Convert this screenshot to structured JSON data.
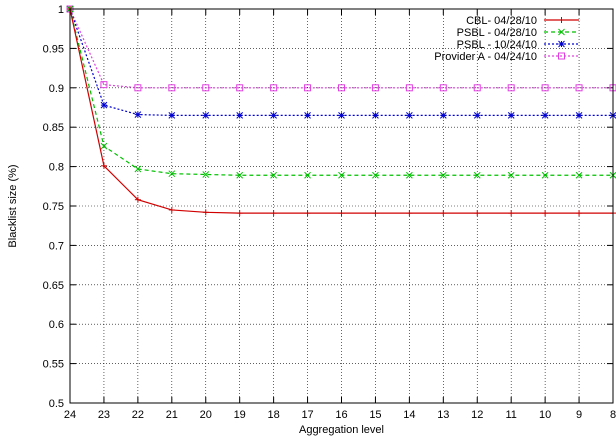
{
  "chart_data": {
    "type": "line",
    "xlabel": "Aggregation level",
    "ylabel": "Blacklist size (%)",
    "x": [
      24,
      23,
      22,
      21,
      20,
      19,
      18,
      17,
      16,
      15,
      14,
      13,
      12,
      11,
      10,
      9,
      8
    ],
    "x_reversed": true,
    "ylim": [
      0.5,
      1.0
    ],
    "yticks": [
      "0.5",
      "0.55",
      "0.6",
      "0.65",
      "0.7",
      "0.75",
      "0.8",
      "0.85",
      "0.9",
      "0.95",
      "1"
    ],
    "grid": true,
    "legend_position": "top-right",
    "series": [
      {
        "name": "CBL- 04/28/10",
        "color": "#d00000",
        "marker": "plus",
        "line": "solid",
        "values": [
          1.0,
          0.801,
          0.758,
          0.745,
          0.742,
          0.741,
          0.741,
          0.741,
          0.741,
          0.741,
          0.741,
          0.741,
          0.741,
          0.741,
          0.741,
          0.741,
          0.741
        ]
      },
      {
        "name": "PSBL - 04/28/10",
        "color": "#00c000",
        "marker": "cross",
        "line": "dashed",
        "values": [
          1.0,
          0.826,
          0.797,
          0.791,
          0.79,
          0.789,
          0.789,
          0.789,
          0.789,
          0.789,
          0.789,
          0.789,
          0.789,
          0.789,
          0.789,
          0.789,
          0.789
        ]
      },
      {
        "name": "PSBL - 10/24/10",
        "color": "#0000d0",
        "marker": "star",
        "line": "dotted",
        "values": [
          1.0,
          0.878,
          0.866,
          0.865,
          0.865,
          0.865,
          0.865,
          0.865,
          0.865,
          0.865,
          0.865,
          0.865,
          0.865,
          0.865,
          0.865,
          0.865,
          0.865
        ]
      },
      {
        "name": "Provider A - 04/24/10",
        "color": "#e040e0",
        "marker": "square",
        "line": "dotted",
        "values": [
          1.0,
          0.904,
          0.9,
          0.9,
          0.9,
          0.9,
          0.9,
          0.9,
          0.9,
          0.9,
          0.9,
          0.9,
          0.9,
          0.9,
          0.9,
          0.9,
          0.9
        ]
      }
    ]
  }
}
